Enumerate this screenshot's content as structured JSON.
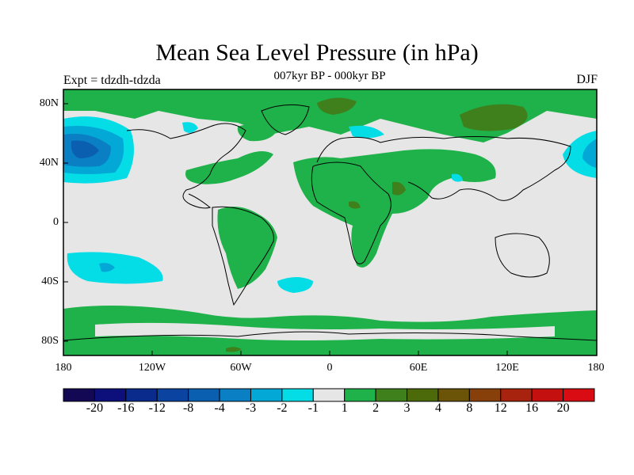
{
  "map": {
    "title": "Mean Sea Level Pressure (in hPa)",
    "subtitle": "007kyr BP - 000kyr BP",
    "left_label": "Expt = tdzdh-tdzda",
    "right_label": "DJF",
    "lat_labels": [
      "80N",
      "40N",
      "0",
      "40S",
      "80S"
    ],
    "lon_labels": [
      "180",
      "120W",
      "60W",
      "0",
      "60E",
      "120E",
      "180"
    ],
    "colorbar": {
      "labels": [
        "-20",
        "-16",
        "-12",
        "-8",
        "-4",
        "-3",
        "-2",
        "-1",
        "1",
        "2",
        "3",
        "4",
        "8",
        "12",
        "16",
        "20"
      ],
      "colors": [
        "#130854",
        "#0d0f7a",
        "#0a2a8c",
        "#0b43a0",
        "#0a5fb0",
        "#0a7fc4",
        "#04a8d6",
        "#04dde6",
        "#e6e6e6",
        "#1fb24a",
        "#3f7f1c",
        "#4d6a0b",
        "#6b5407",
        "#874009",
        "#a8230d",
        "#c4100f",
        "#d80c12"
      ]
    }
  }
}
